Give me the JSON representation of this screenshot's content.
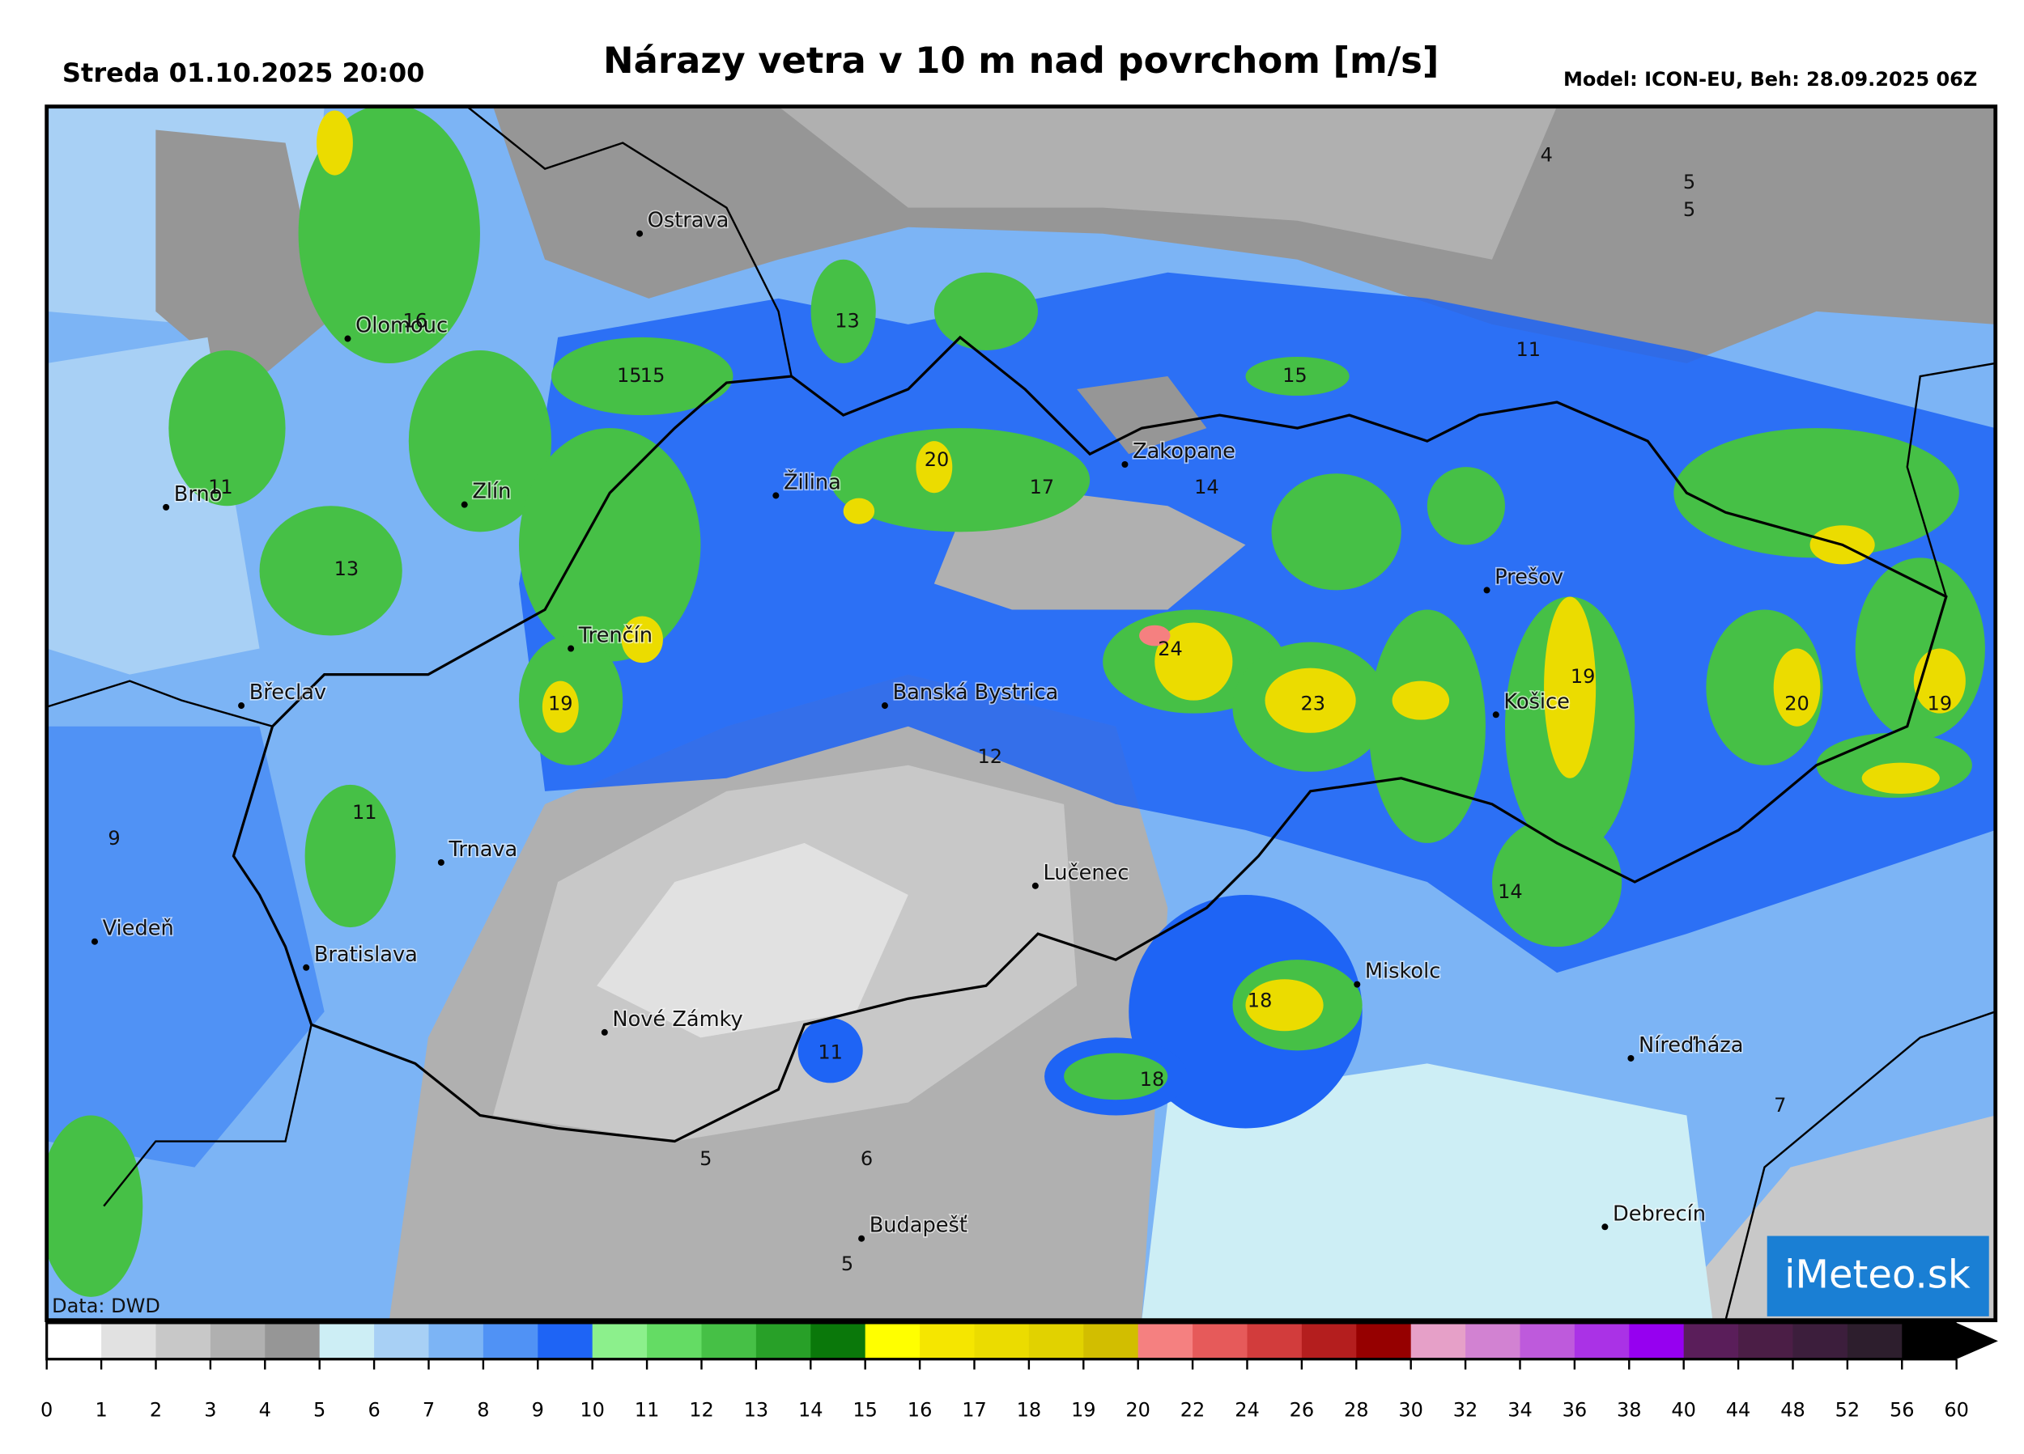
{
  "header": {
    "date": "Streda 01.10.2025 20:00",
    "title": "Nárazy vetra v 10 m nad povrchom [m/s]",
    "model": "Model: ICON-EU, Beh: 28.09.2025 06Z"
  },
  "map": {
    "cities": [
      "Ostrava",
      "Olomouc",
      "Brno",
      "Zlín",
      "Žilina",
      "Zakopane",
      "Trenčín",
      "Břeclav",
      "Banská Bystrica",
      "Prešov",
      "Košice",
      "Trnava",
      "Lučenec",
      "Viedeň",
      "Bratislava",
      "Miskolc",
      "Nové Zámky",
      "Níreďháza",
      "Debrecín",
      "Budapešť"
    ],
    "values": [
      4,
      5,
      5,
      16,
      13,
      15,
      15,
      11,
      15,
      11,
      20,
      17,
      14,
      13,
      24,
      19,
      19,
      23,
      20,
      19,
      12,
      11,
      9,
      14,
      18,
      11,
      18,
      7,
      5,
      6,
      5
    ],
    "credit": "Data: DWD",
    "logo": "iMeteo.sk"
  },
  "colorbar": {
    "ticks": [
      0,
      1,
      2,
      3,
      4,
      5,
      6,
      7,
      8,
      9,
      10,
      11,
      12,
      13,
      14,
      15,
      16,
      17,
      18,
      19,
      20,
      22,
      24,
      26,
      28,
      30,
      32,
      34,
      36,
      38,
      40,
      44,
      48,
      52,
      56,
      60
    ],
    "colors": [
      "#ffffff",
      "#e1e1e1",
      "#c8c8c8",
      "#b0b0b0",
      "#969696",
      "#cdeef5",
      "#a8d0f5",
      "#7cb4f5",
      "#5092f5",
      "#1e64f5",
      "#8cf08c",
      "#64dc64",
      "#46c046",
      "#28a028",
      "#0a780a",
      "#ffff00",
      "#f5e600",
      "#ebdc00",
      "#e1d200",
      "#d2be00",
      "#f58080",
      "#e65a5a",
      "#d23c3c",
      "#b41e1e",
      "#960000",
      "#e6a0c8",
      "#d282d2",
      "#be5adc",
      "#aa32e6",
      "#9600f0",
      "#5a1e5a",
      "#4b1e46",
      "#3c1e3c",
      "#2d1e2d",
      "#000000"
    ]
  }
}
